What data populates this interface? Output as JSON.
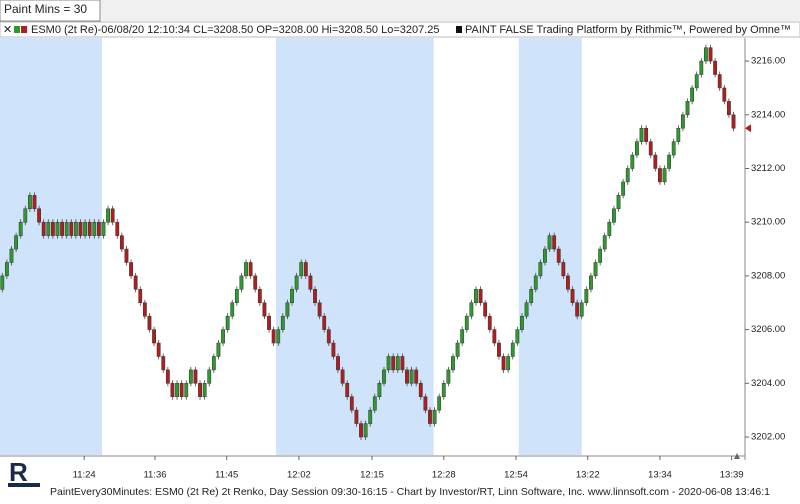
{
  "chart_data": {
    "type": "renko",
    "paint_label": "Paint Mins = 30",
    "header": "ESM0 (2t Re)-06/08/20 12:10:34 CL=3208.50 OP=3208.00 Hi=3208.50 Lo=3207.25",
    "header_right": "PAINT FALSE  Trading Platform by Rithmic™, Powered by Omne™",
    "footer": "PaintEvery30Minutes: ESM0 (2t Re) 2t Renko, Day Session 09:30-16:15 - Chart by Investor/RT, Linn Software, Inc. www.linnsoft.com - 2020-06-08 13:46:1",
    "brick_size": 0.5,
    "up_color": "#2e9a2e",
    "down_color": "#b01e1e",
    "band_color": "#cfe4fb",
    "bands": [
      [
        -0.5,
        21.7
      ],
      [
        59.5,
        93.8
      ],
      [
        112.3,
        126
      ]
    ],
    "values": [
      3208,
      3208.5,
      3209,
      3209.5,
      3210,
      3210.5,
      3211,
      3210.5,
      3210,
      3209.5,
      3210,
      3209.5,
      3210,
      3209.5,
      3210,
      3209.5,
      3210,
      3209.5,
      3210,
      3209.5,
      3210,
      3209.5,
      3210,
      3210.5,
      3210,
      3209.5,
      3209,
      3208.5,
      3208,
      3207.5,
      3207,
      3206.5,
      3206,
      3205.5,
      3205,
      3204.5,
      3204,
      3203.5,
      3204,
      3203.5,
      3204,
      3204.5,
      3204,
      3203.5,
      3204,
      3204.5,
      3205,
      3205.5,
      3206,
      3206.5,
      3207,
      3207.5,
      3208,
      3208.5,
      3208,
      3207.5,
      3207,
      3206.5,
      3206,
      3205.5,
      3206,
      3206.5,
      3207,
      3207.5,
      3208,
      3208.5,
      3208,
      3207.5,
      3207,
      3206.5,
      3206,
      3205.5,
      3205,
      3204.5,
      3204,
      3203.5,
      3203,
      3202.5,
      3202,
      3202.5,
      3203,
      3203.5,
      3204,
      3204.5,
      3205,
      3204.5,
      3205,
      3204.5,
      3204,
      3204.5,
      3204,
      3203.5,
      3203,
      3202.5,
      3203,
      3203.5,
      3204,
      3204.5,
      3205,
      3205.5,
      3206,
      3206.5,
      3207,
      3207.5,
      3207,
      3206.5,
      3206,
      3205.5,
      3205,
      3204.5,
      3205,
      3205.5,
      3206,
      3206.5,
      3207,
      3207.5,
      3208,
      3208.5,
      3209,
      3209.5,
      3209,
      3208.5,
      3208,
      3207.5,
      3207,
      3206.5,
      3207,
      3207.5,
      3208,
      3208.5,
      3209,
      3209.5,
      3210,
      3210.5,
      3211,
      3211.5,
      3212,
      3212.5,
      3213,
      3213.5,
      3213,
      3212.5,
      3212,
      3211.5,
      3212,
      3212.5,
      3213,
      3213.5,
      3214,
      3214.5,
      3215,
      3215.5,
      3216,
      3216.5,
      3216,
      3215.5,
      3215,
      3214.5,
      3214,
      3213.5
    ],
    "xlim": [
      -0.5,
      161.5
    ],
    "xticks": [
      {
        "value": 17.8,
        "label": "11:24"
      },
      {
        "value": 33.2,
        "label": "11:36"
      },
      {
        "value": 48.8,
        "label": "11:45"
      },
      {
        "value": 64.5,
        "label": "12:02"
      },
      {
        "value": 80.4,
        "label": "12:15"
      },
      {
        "value": 96,
        "label": "12:28"
      },
      {
        "value": 111.7,
        "label": "12:54"
      },
      {
        "value": 127.3,
        "label": "13:22"
      },
      {
        "value": 143,
        "label": "13:34"
      },
      {
        "value": 158.6,
        "label": "13:39"
      }
    ],
    "ylim": [
      3201.33,
      3216.86
    ],
    "yticks": [
      {
        "value": 3202,
        "label": "3202.00"
      },
      {
        "value": 3204,
        "label": "3204.00"
      },
      {
        "value": 3206,
        "label": "3206.00"
      },
      {
        "value": 3208,
        "label": "3208.00"
      },
      {
        "value": 3210,
        "label": "3210.00"
      },
      {
        "value": 3212,
        "label": "3212.00"
      },
      {
        "value": 3214,
        "label": "3214.00"
      },
      {
        "value": 3216,
        "label": "3216.00"
      }
    ]
  }
}
